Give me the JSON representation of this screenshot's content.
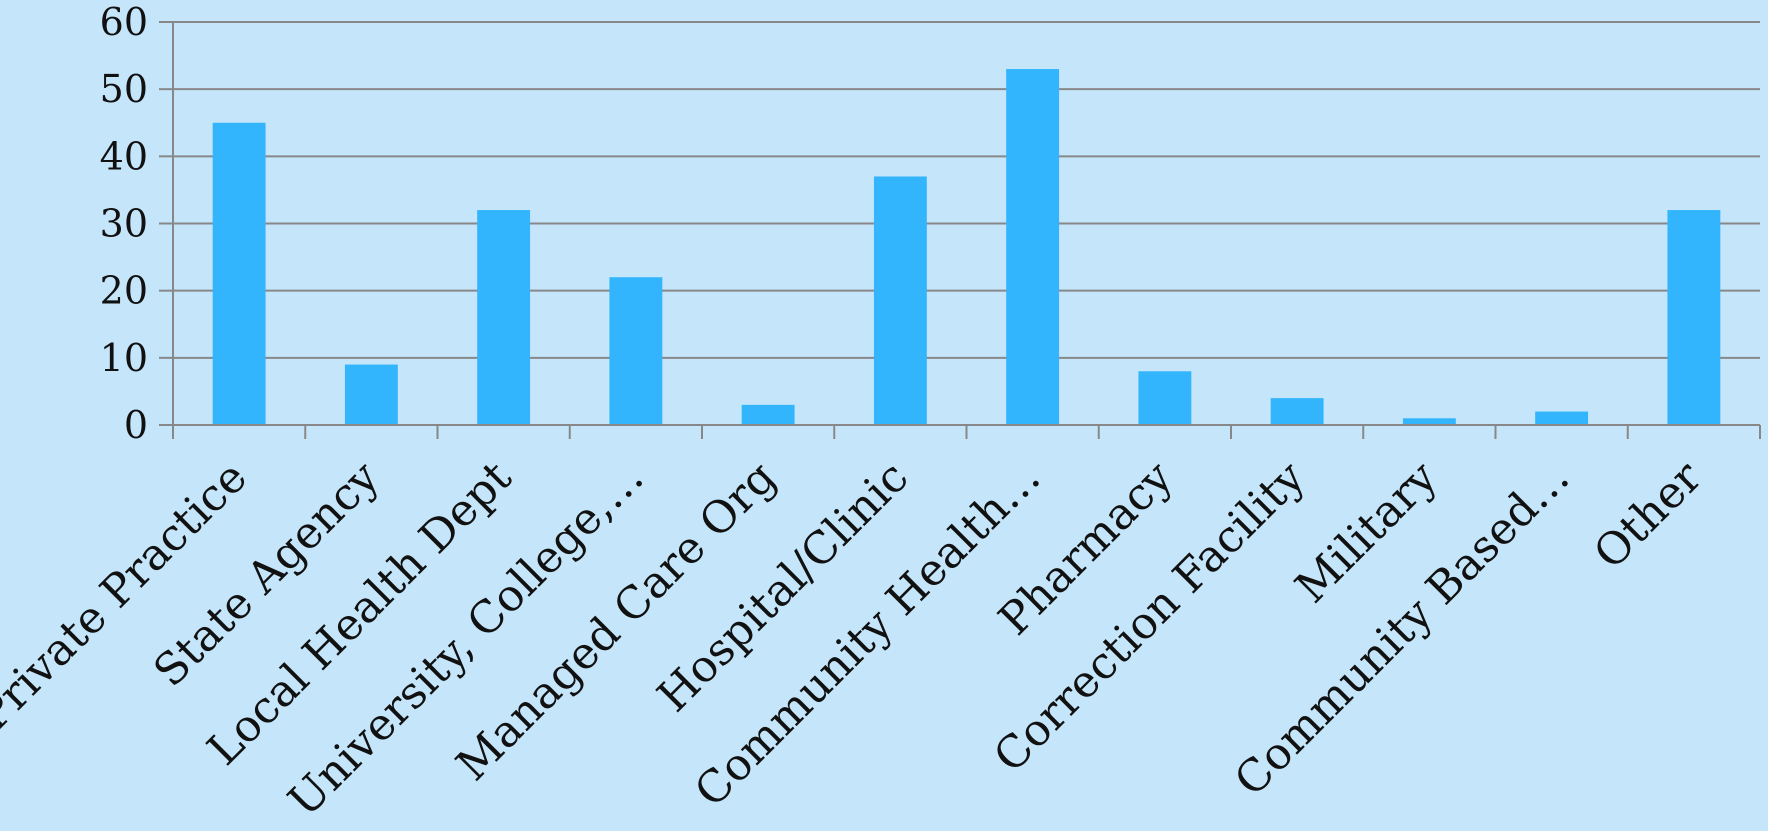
{
  "chart_data": {
    "type": "bar",
    "title": "",
    "xlabel": "",
    "ylabel": "",
    "categories": [
      "Private Practice",
      "State Agency",
      "Local Health Dept",
      "University, College,…",
      "Managed Care Org",
      "Hospital/Clinic",
      "Community Health…",
      "Pharmacy",
      "Correction Facility",
      "Military",
      "Community Based…",
      "Other"
    ],
    "values": [
      45,
      9,
      32,
      22,
      3,
      37,
      53,
      8,
      4,
      1,
      2,
      32
    ],
    "ylim": [
      0,
      60
    ],
    "yticks": [
      0,
      10,
      20,
      30,
      40,
      50,
      60
    ],
    "grid": true,
    "legend": "none",
    "colors": {
      "background": "#c5e6fa",
      "bar": "#33b5fd",
      "grid": "#888888",
      "axis": "#888888",
      "text": "#111111"
    }
  }
}
